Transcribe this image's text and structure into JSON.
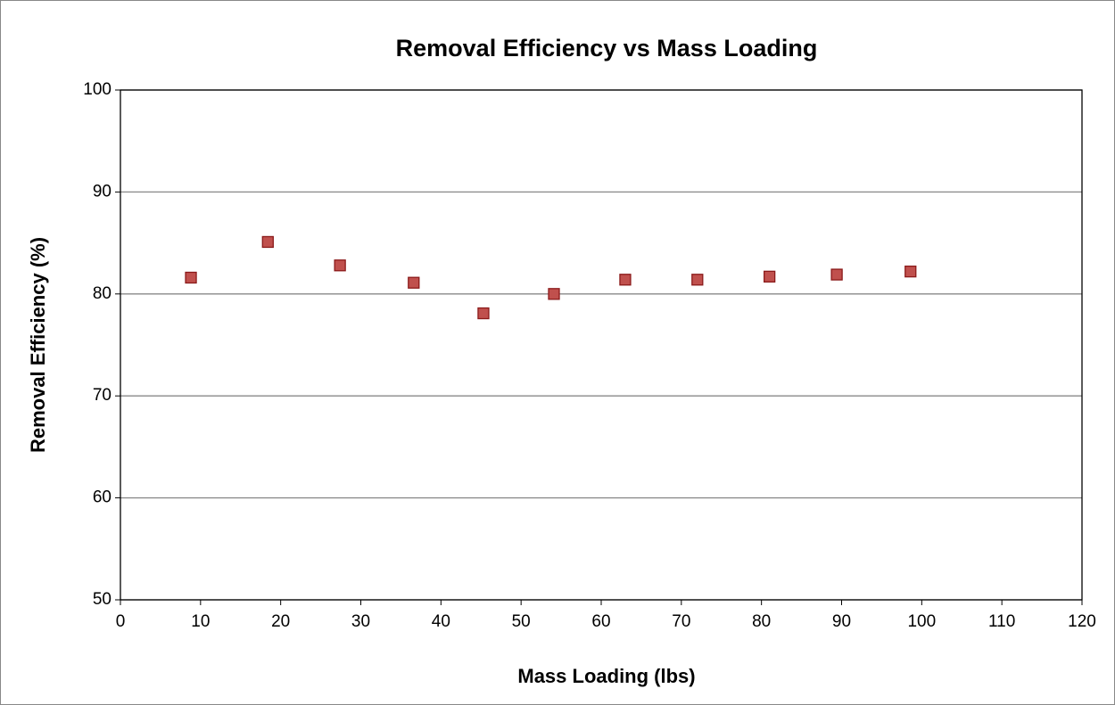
{
  "chart_data": {
    "type": "scatter",
    "title": "Removal Efficiency vs Mass Loading",
    "xlabel": "Mass Loading (lbs)",
    "ylabel": "Removal Efficiency (%)",
    "series": [
      {
        "name": "Removal Efficiency",
        "color": "#c0504d",
        "x": [
          8.8,
          18.4,
          27.4,
          36.6,
          45.3,
          54.1,
          63.0,
          72.0,
          81.0,
          89.4,
          98.6
        ],
        "values": [
          81.6,
          85.1,
          82.8,
          81.1,
          78.1,
          80.0,
          81.4,
          81.4,
          81.7,
          81.9,
          82.2
        ]
      }
    ],
    "xlim": [
      0,
      120
    ],
    "xticks": [
      0,
      10,
      20,
      30,
      40,
      50,
      60,
      70,
      80,
      90,
      100,
      110,
      120
    ],
    "ylim": [
      50,
      100
    ],
    "yticks": [
      50,
      60,
      70,
      80,
      90,
      100
    ],
    "grid": true
  }
}
